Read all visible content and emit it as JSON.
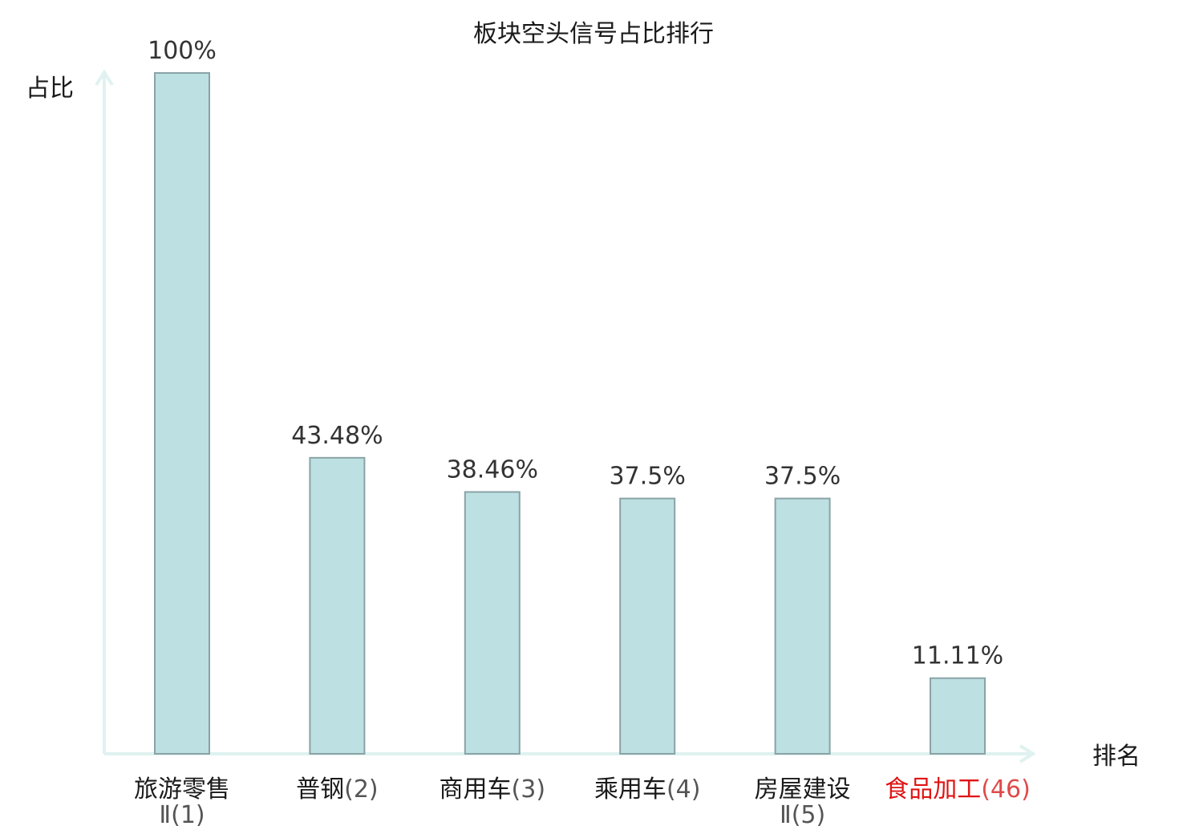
{
  "chart_data": {
    "type": "bar",
    "title": "板块空头信号占比排行",
    "ylabel": "占比",
    "xlabel": "排名",
    "ylim": [
      0,
      100
    ],
    "grid": false,
    "categories": [
      {
        "name": "旅游零售",
        "suffix": "Ⅱ(1)"
      },
      {
        "name": "普钢",
        "suffix": "(2)"
      },
      {
        "name": "商用车",
        "suffix": "(3)"
      },
      {
        "name": "乘用车",
        "suffix": "(4)"
      },
      {
        "name": "房屋建设",
        "suffix": "Ⅱ(5)"
      },
      {
        "name": "食品加工",
        "suffix": "(46)"
      }
    ],
    "values": [
      100,
      43.48,
      38.46,
      37.5,
      37.5,
      11.11
    ],
    "value_labels": [
      "100%",
      "43.48%",
      "38.46%",
      "37.5%",
      "37.5%",
      "11.11%"
    ],
    "highlight_index": 5,
    "colors": {
      "bar_fill": "#bde0e2",
      "bar_stroke": "#8aa3a6",
      "axis": "#dff2ef",
      "text": "#1a1a1a",
      "value_text": "#333333",
      "suffix_text": "#555555",
      "highlight": "#e01414",
      "highlight_suffix": "#e04a4a"
    }
  }
}
